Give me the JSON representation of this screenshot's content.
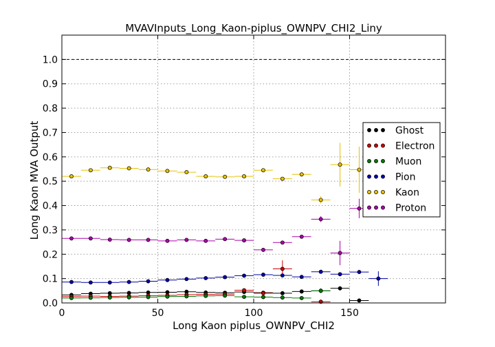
{
  "chart_data": {
    "type": "scatter",
    "title": "MVAVInputs_Long_Kaon-piplus_OWNPV_CHI2_Liny",
    "xlabel": "Long Kaon piplus_OWNPV_CHI2",
    "ylabel": "Long Kaon MVA Output",
    "xlim": [
      0,
      200
    ],
    "ylim": [
      0.0,
      1.1
    ],
    "x_ticks": [
      "0",
      "50",
      "100",
      "150"
    ],
    "y_ticks": [
      "0.0",
      "0.1",
      "0.2",
      "0.3",
      "0.4",
      "0.5",
      "0.6",
      "0.7",
      "0.8",
      "0.9",
      "1.0"
    ],
    "grid": true,
    "reference_line_y": 1.0,
    "legend_position": "right",
    "series": [
      {
        "name": "Ghost",
        "color": "#000000",
        "x": [
          5,
          15,
          25,
          35,
          45,
          55,
          65,
          75,
          85,
          95,
          105,
          115,
          125,
          135,
          145,
          155
        ],
        "y": [
          0.033,
          0.038,
          0.04,
          0.041,
          0.043,
          0.044,
          0.046,
          0.043,
          0.042,
          0.045,
          0.042,
          0.04,
          0.047,
          0.05,
          0.06,
          0.01
        ],
        "yerr": [
          0.002,
          0.002,
          0.002,
          0.002,
          0.002,
          0.002,
          0.002,
          0.002,
          0.003,
          0.003,
          0.003,
          0.004,
          0.005,
          0.006,
          0.008,
          0.006
        ]
      },
      {
        "name": "Electron",
        "color": "#cc0000",
        "x": [
          5,
          15,
          25,
          35,
          45,
          55,
          65,
          75,
          85,
          95,
          105,
          115,
          135
        ],
        "y": [
          0.026,
          0.028,
          0.027,
          0.028,
          0.03,
          0.031,
          0.034,
          0.035,
          0.036,
          0.052,
          0.04,
          0.14,
          0.005
        ],
        "yerr": [
          0.003,
          0.003,
          0.003,
          0.003,
          0.004,
          0.004,
          0.004,
          0.005,
          0.005,
          0.007,
          0.008,
          0.035,
          0.005
        ]
      },
      {
        "name": "Muon",
        "color": "#007700",
        "x": [
          5,
          15,
          25,
          35,
          45,
          55,
          65,
          75,
          85,
          95,
          105,
          115,
          125,
          135
        ],
        "y": [
          0.02,
          0.021,
          0.022,
          0.023,
          0.024,
          0.026,
          0.027,
          0.029,
          0.03,
          0.025,
          0.024,
          0.022,
          0.02,
          0.05
        ],
        "yerr": [
          0.002,
          0.002,
          0.002,
          0.002,
          0.002,
          0.002,
          0.002,
          0.003,
          0.003,
          0.003,
          0.003,
          0.004,
          0.004,
          0.01
        ]
      },
      {
        "name": "Pion",
        "color": "#0000aa",
        "x": [
          5,
          15,
          25,
          35,
          45,
          55,
          65,
          75,
          85,
          95,
          105,
          115,
          125,
          135,
          145,
          155,
          165
        ],
        "y": [
          0.086,
          0.084,
          0.084,
          0.086,
          0.089,
          0.094,
          0.098,
          0.102,
          0.106,
          0.112,
          0.116,
          0.113,
          0.107,
          0.128,
          0.118,
          0.127,
          0.1
        ],
        "yerr": [
          0.002,
          0.002,
          0.002,
          0.002,
          0.002,
          0.002,
          0.002,
          0.002,
          0.002,
          0.003,
          0.003,
          0.004,
          0.004,
          0.006,
          0.007,
          0.008,
          0.03
        ]
      },
      {
        "name": "Kaon",
        "color": "#e6c000",
        "x": [
          5,
          15,
          25,
          35,
          45,
          55,
          65,
          75,
          85,
          95,
          105,
          115,
          125,
          135,
          145,
          155
        ],
        "y": [
          0.52,
          0.545,
          0.555,
          0.553,
          0.548,
          0.542,
          0.537,
          0.52,
          0.518,
          0.52,
          0.545,
          0.51,
          0.528,
          0.423,
          0.568,
          0.547
        ],
        "yerr": [
          0.004,
          0.004,
          0.004,
          0.004,
          0.004,
          0.004,
          0.004,
          0.004,
          0.004,
          0.005,
          0.006,
          0.008,
          0.01,
          0.015,
          0.09,
          0.095
        ]
      },
      {
        "name": "Proton",
        "color": "#aa00aa",
        "x": [
          5,
          15,
          25,
          35,
          45,
          55,
          65,
          75,
          85,
          95,
          105,
          115,
          125,
          135,
          145,
          155
        ],
        "y": [
          0.265,
          0.265,
          0.26,
          0.259,
          0.259,
          0.255,
          0.259,
          0.255,
          0.262,
          0.257,
          0.218,
          0.248,
          0.272,
          0.344,
          0.205,
          0.388
        ],
        "yerr": [
          0.003,
          0.003,
          0.003,
          0.003,
          0.003,
          0.003,
          0.003,
          0.003,
          0.003,
          0.004,
          0.005,
          0.006,
          0.008,
          0.012,
          0.05,
          0.04
        ]
      }
    ]
  }
}
